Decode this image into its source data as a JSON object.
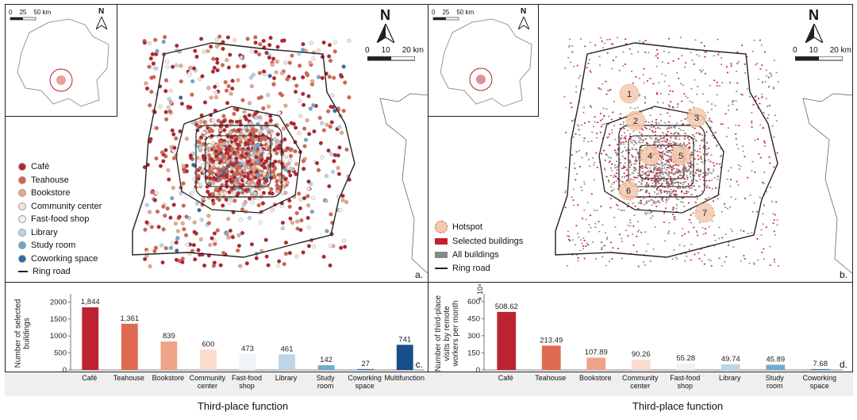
{
  "maps": {
    "a": {
      "letter": "a.",
      "inset_scale": {
        "labels": [
          "0",
          "25",
          "50 km"
        ]
      },
      "main_scale": {
        "labels": [
          "0",
          "10",
          "20 km"
        ]
      },
      "north_label": "N",
      "legend": [
        {
          "label": "Café",
          "color": "#b5222d"
        },
        {
          "label": "Teahouse",
          "color": "#d9634b"
        },
        {
          "label": "Bookstore",
          "color": "#eea68a"
        },
        {
          "label": "Community center",
          "color": "#fbe1d3"
        },
        {
          "label": "Fast-food shop",
          "color": "#eef3f7"
        },
        {
          "label": "Library",
          "color": "#bad6e8"
        },
        {
          "label": "Study room",
          "color": "#6ea7cf"
        },
        {
          "label": "Coworking space",
          "color": "#2b6aa8"
        },
        {
          "label": "Ring road",
          "color": "#222222"
        }
      ]
    },
    "b": {
      "letter": "b.",
      "inset_scale": {
        "labels": [
          "0",
          "25",
          "50 km"
        ]
      },
      "main_scale": {
        "labels": [
          "0",
          "10",
          "20 km"
        ]
      },
      "north_label": "N",
      "hotspots": [
        "1",
        "2",
        "3",
        "4",
        "5",
        "6",
        "7"
      ],
      "legend": [
        {
          "label": "Hotspot",
          "color": "#f4c9ad"
        },
        {
          "label": "Selected buildings",
          "color": "#c3202c"
        },
        {
          "label": "All buildings",
          "color": "#888888"
        },
        {
          "label": "Ring road",
          "color": "#222222"
        }
      ]
    }
  },
  "charts": {
    "c": {
      "letter": "c.",
      "xlabel_footer": "Third-place function",
      "chart_data": {
        "type": "bar",
        "categories": [
          "Café",
          "Teahouse",
          "Bookstore",
          "Community\ncenter",
          "Fast-food\nshop",
          "Library",
          "Study\nroom",
          "Coworking\nspace",
          "Multifunction"
        ],
        "values": [
          1844,
          1361,
          839,
          600,
          473,
          461,
          142,
          27,
          741
        ],
        "value_labels": [
          "1,844",
          "1,361",
          "839",
          "600",
          "473",
          "461",
          "142",
          "27",
          "741"
        ],
        "colors": [
          "#bd2330",
          "#de6b4f",
          "#efa487",
          "#fbdccc",
          "#f0f4f7",
          "#bbd6e8",
          "#74abd0",
          "#3673ad",
          "#184e89"
        ],
        "ylabel": "Number of selected\nbuildings",
        "yticks": [
          "0",
          "500",
          "1000",
          "1500",
          "2000"
        ],
        "ylim": [
          0,
          2150
        ],
        "xlabel": "Third-place function"
      }
    },
    "d": {
      "letter": "d.",
      "xlabel_footer": "Third-place function",
      "chart_data": {
        "type": "bar",
        "categories": [
          "Café",
          "Teahouse",
          "Bookstore",
          "Community\ncenter",
          "Fast-food\nshop",
          "Library",
          "Study\nroom",
          "Coworking\nspace"
        ],
        "values": [
          508.62,
          213.49,
          107.89,
          90.26,
          55.28,
          49.74,
          45.89,
          7.68
        ],
        "value_labels": [
          "508.62",
          "213.49",
          "107.89",
          "90.26",
          "55.28",
          "49.74",
          "45.89",
          "7.68"
        ],
        "colors": [
          "#bd2330",
          "#de6b4f",
          "#efa487",
          "#fbdccc",
          "#f0f4f7",
          "#bbd6e8",
          "#74abd0",
          "#3673ad"
        ],
        "ylabel": "Number of third-place\nvisits by remote\nworkers per month",
        "yticks": [
          "0",
          "150",
          "300",
          "450",
          "600"
        ],
        "ylim": [
          0,
          640
        ],
        "exponent_label": "× 10⁴",
        "xlabel": "Third-place function"
      }
    }
  }
}
